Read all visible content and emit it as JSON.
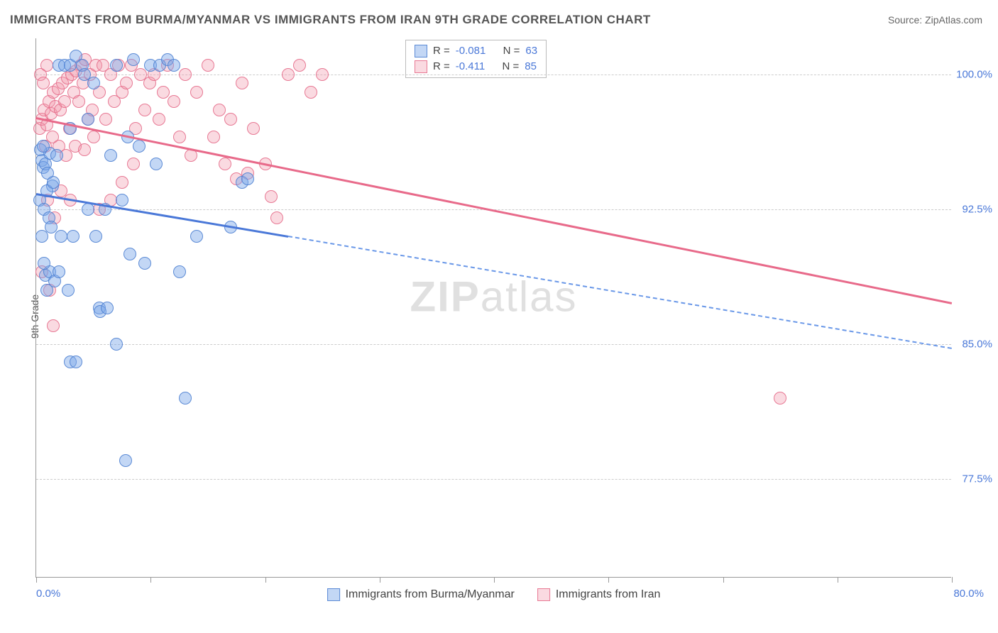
{
  "title": "IMMIGRANTS FROM BURMA/MYANMAR VS IMMIGRANTS FROM IRAN 9TH GRADE CORRELATION CHART",
  "source": "Source: ZipAtlas.com",
  "y_axis_title": "9th Grade",
  "watermark_bold": "ZIP",
  "watermark_rest": "atlas",
  "chart": {
    "type": "scatter",
    "xlim": [
      0,
      80
    ],
    "ylim": [
      72,
      102
    ],
    "x_tick_positions": [
      0,
      10,
      20,
      30,
      40,
      50,
      60,
      70,
      80
    ],
    "x_label_min": "0.0%",
    "x_label_max": "80.0%",
    "y_ticks": [
      {
        "v": 77.5,
        "label": "77.5%"
      },
      {
        "v": 85.0,
        "label": "85.0%"
      },
      {
        "v": 92.5,
        "label": "92.5%"
      },
      {
        "v": 100.0,
        "label": "100.0%"
      }
    ],
    "colors": {
      "blue_fill": "rgba(122,167,232,0.45)",
      "blue_stroke": "rgba(80,130,210,0.9)",
      "pink_fill": "rgba(240,150,170,0.35)",
      "pink_stroke": "rgba(230,110,140,0.9)",
      "axis_text": "#4a78d8",
      "grid": "#cccccc"
    },
    "legend_top": [
      {
        "swatch": "blue",
        "r_label": "R =",
        "r_val": "-0.081",
        "n_label": "N =",
        "n_val": "63"
      },
      {
        "swatch": "pink",
        "r_label": "R =",
        "r_val": "-0.411",
        "n_label": "N =",
        "n_val": "85"
      }
    ],
    "legend_bottom": [
      {
        "swatch": "blue",
        "label": "Immigrants from Burma/Myanmar"
      },
      {
        "swatch": "pink",
        "label": "Immigrants from Iran"
      }
    ],
    "trend_lines": {
      "blue": {
        "x1": 0,
        "y1": 93.4,
        "x2": 80,
        "y2": 84.8,
        "solid_until_x": 22
      },
      "pink": {
        "x1": 0,
        "y1": 97.6,
        "x2": 80,
        "y2": 87.3,
        "solid_until_x": 80
      }
    },
    "series": {
      "blue": [
        [
          0.5,
          95.2
        ],
        [
          0.6,
          94.8
        ],
        [
          0.8,
          95.0
        ],
        [
          1.0,
          94.5
        ],
        [
          1.2,
          95.6
        ],
        [
          1.4,
          93.8
        ],
        [
          0.3,
          93.0
        ],
        [
          0.7,
          92.5
        ],
        [
          0.9,
          93.5
        ],
        [
          1.1,
          92.0
        ],
        [
          1.3,
          91.5
        ],
        [
          1.5,
          94.0
        ],
        [
          0.4,
          95.8
        ],
        [
          2.0,
          100.5
        ],
        [
          2.5,
          100.5
        ],
        [
          3.0,
          100.5
        ],
        [
          3.5,
          101.0
        ],
        [
          4.0,
          100.5
        ],
        [
          4.2,
          100.0
        ],
        [
          5.0,
          99.5
        ],
        [
          7.0,
          100.5
        ],
        [
          8.5,
          100.8
        ],
        [
          10.0,
          100.5
        ],
        [
          10.8,
          100.5
        ],
        [
          11.5,
          100.8
        ],
        [
          12.0,
          100.5
        ],
        [
          6.5,
          95.5
        ],
        [
          8.0,
          96.5
        ],
        [
          9.0,
          96.0
        ],
        [
          10.5,
          95.0
        ],
        [
          4.5,
          92.5
        ],
        [
          6.0,
          92.5
        ],
        [
          7.5,
          93.0
        ],
        [
          2.2,
          91.0
        ],
        [
          3.2,
          91.0
        ],
        [
          5.2,
          91.0
        ],
        [
          8.2,
          90.0
        ],
        [
          9.5,
          89.5
        ],
        [
          12.5,
          89.0
        ],
        [
          14.0,
          91.0
        ],
        [
          18.0,
          94.0
        ],
        [
          18.5,
          94.2
        ],
        [
          5.5,
          87.0
        ],
        [
          5.6,
          86.8
        ],
        [
          6.2,
          87.0
        ],
        [
          7.0,
          85.0
        ],
        [
          7.8,
          78.5
        ],
        [
          3.0,
          84.0
        ],
        [
          3.5,
          84.0
        ],
        [
          0.8,
          88.8
        ],
        [
          0.9,
          88.0
        ],
        [
          1.2,
          89.0
        ],
        [
          1.6,
          88.5
        ],
        [
          2.0,
          89.0
        ],
        [
          2.8,
          88.0
        ],
        [
          0.5,
          91.0
        ],
        [
          0.7,
          89.5
        ],
        [
          13.0,
          82.0
        ],
        [
          17.0,
          91.5
        ],
        [
          1.8,
          95.5
        ],
        [
          3.0,
          97.0
        ],
        [
          4.5,
          97.5
        ],
        [
          0.6,
          96.0
        ]
      ],
      "pink": [
        [
          0.3,
          97.0
        ],
        [
          0.5,
          97.5
        ],
        [
          0.7,
          98.0
        ],
        [
          0.9,
          97.2
        ],
        [
          1.1,
          98.5
        ],
        [
          1.3,
          97.8
        ],
        [
          1.5,
          99.0
        ],
        [
          1.7,
          98.2
        ],
        [
          1.9,
          99.2
        ],
        [
          2.1,
          98.0
        ],
        [
          2.3,
          99.5
        ],
        [
          2.5,
          98.5
        ],
        [
          2.7,
          99.8
        ],
        [
          2.9,
          97.0
        ],
        [
          3.1,
          100.0
        ],
        [
          3.3,
          99.0
        ],
        [
          3.5,
          100.2
        ],
        [
          3.7,
          98.5
        ],
        [
          3.9,
          100.5
        ],
        [
          4.1,
          99.5
        ],
        [
          4.3,
          100.8
        ],
        [
          4.5,
          97.5
        ],
        [
          4.7,
          100.0
        ],
        [
          4.9,
          98.0
        ],
        [
          5.2,
          100.5
        ],
        [
          5.5,
          99.0
        ],
        [
          5.8,
          100.5
        ],
        [
          6.1,
          97.5
        ],
        [
          6.5,
          100.0
        ],
        [
          6.8,
          98.5
        ],
        [
          7.2,
          100.5
        ],
        [
          7.5,
          99.0
        ],
        [
          7.9,
          99.5
        ],
        [
          8.3,
          100.5
        ],
        [
          8.7,
          97.0
        ],
        [
          9.1,
          100.0
        ],
        [
          9.5,
          98.0
        ],
        [
          9.9,
          99.5
        ],
        [
          10.3,
          100.0
        ],
        [
          10.7,
          97.5
        ],
        [
          11.1,
          99.0
        ],
        [
          11.5,
          100.5
        ],
        [
          12.0,
          98.5
        ],
        [
          12.5,
          96.5
        ],
        [
          13.0,
          100.0
        ],
        [
          13.5,
          95.5
        ],
        [
          14.0,
          99.0
        ],
        [
          15.0,
          100.5
        ],
        [
          15.5,
          96.5
        ],
        [
          16.0,
          98.0
        ],
        [
          16.5,
          95.0
        ],
        [
          17.0,
          97.5
        ],
        [
          17.5,
          94.2
        ],
        [
          18.0,
          99.5
        ],
        [
          18.5,
          94.5
        ],
        [
          19.0,
          97.0
        ],
        [
          20.0,
          95.0
        ],
        [
          20.5,
          93.2
        ],
        [
          21.0,
          92.0
        ],
        [
          22.0,
          100.0
        ],
        [
          23.0,
          100.5
        ],
        [
          24.0,
          99.0
        ],
        [
          25.0,
          100.0
        ],
        [
          0.8,
          96.0
        ],
        [
          1.4,
          96.5
        ],
        [
          2.0,
          96.0
        ],
        [
          2.6,
          95.5
        ],
        [
          3.4,
          96.0
        ],
        [
          4.2,
          95.8
        ],
        [
          5.0,
          96.5
        ],
        [
          1.0,
          93.0
        ],
        [
          1.6,
          92.0
        ],
        [
          2.2,
          93.5
        ],
        [
          3.0,
          93.0
        ],
        [
          0.5,
          89.0
        ],
        [
          1.2,
          88.0
        ],
        [
          1.5,
          86.0
        ],
        [
          5.5,
          92.5
        ],
        [
          6.5,
          93.0
        ],
        [
          7.5,
          94.0
        ],
        [
          8.5,
          95.0
        ],
        [
          65.0,
          82.0
        ],
        [
          0.4,
          100.0
        ],
        [
          0.6,
          99.5
        ],
        [
          0.9,
          100.5
        ]
      ]
    }
  }
}
